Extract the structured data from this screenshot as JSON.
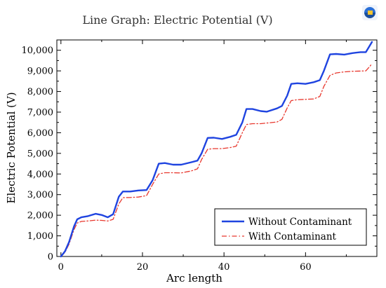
{
  "chart_data": {
    "type": "line",
    "title": "Line Graph: Electric Potential (V)",
    "xlabel": "Arc length",
    "ylabel": "Electric Potential (V)",
    "xlim": [
      -1,
      77.5
    ],
    "ylim": [
      0,
      10500
    ],
    "xticks": [
      0,
      20,
      40,
      60
    ],
    "yticks": [
      0,
      1000,
      2000,
      3000,
      4000,
      5000,
      6000,
      7000,
      8000,
      9000,
      10000
    ],
    "ytick_labels": [
      "0",
      "1,000",
      "2,000",
      "3,000",
      "4,000",
      "5,000",
      "6,000",
      "7,000",
      "8,000",
      "9,000",
      "10,000"
    ],
    "grid": false,
    "legend_position": "bottom-right",
    "series": [
      {
        "name": "Without Contaminant",
        "color": "#1f44e0",
        "style": "solid",
        "points": [
          [
            0,
            0
          ],
          [
            1,
            250
          ],
          [
            2,
            700
          ],
          [
            3.2,
            1450
          ],
          [
            4,
            1800
          ],
          [
            5,
            1900
          ],
          [
            6.5,
            1950
          ],
          [
            8.5,
            2070
          ],
          [
            10,
            2010
          ],
          [
            11.5,
            1900
          ],
          [
            12.8,
            2050
          ],
          [
            14.2,
            2900
          ],
          [
            15.2,
            3150
          ],
          [
            17,
            3150
          ],
          [
            19,
            3200
          ],
          [
            21,
            3220
          ],
          [
            22.5,
            3700
          ],
          [
            24,
            4500
          ],
          [
            25.5,
            4530
          ],
          [
            27.5,
            4450
          ],
          [
            29.5,
            4450
          ],
          [
            32,
            4570
          ],
          [
            33.5,
            4650
          ],
          [
            34.5,
            5000
          ],
          [
            36,
            5750
          ],
          [
            37.5,
            5760
          ],
          [
            39.5,
            5700
          ],
          [
            41.5,
            5800
          ],
          [
            43,
            5900
          ],
          [
            44.5,
            6500
          ],
          [
            45.5,
            7150
          ],
          [
            47,
            7150
          ],
          [
            49,
            7050
          ],
          [
            50.5,
            7020
          ],
          [
            53,
            7180
          ],
          [
            54.2,
            7300
          ],
          [
            55.5,
            7800
          ],
          [
            56.5,
            8370
          ],
          [
            58,
            8400
          ],
          [
            60,
            8370
          ],
          [
            62,
            8450
          ],
          [
            63.5,
            8550
          ],
          [
            64.5,
            9000
          ],
          [
            66,
            9800
          ],
          [
            67.5,
            9820
          ],
          [
            69.5,
            9790
          ],
          [
            71.5,
            9860
          ],
          [
            73.5,
            9910
          ],
          [
            74.8,
            9910
          ],
          [
            75.7,
            10200
          ],
          [
            76.3,
            10400
          ]
        ]
      },
      {
        "name": "With Contaminant",
        "color": "#e8372d",
        "style": "dashdot",
        "points": [
          [
            0,
            0
          ],
          [
            1,
            200
          ],
          [
            2,
            600
          ],
          [
            3.2,
            1300
          ],
          [
            4,
            1620
          ],
          [
            5,
            1700
          ],
          [
            6.5,
            1720
          ],
          [
            8.5,
            1760
          ],
          [
            10,
            1750
          ],
          [
            11.5,
            1720
          ],
          [
            12.8,
            1800
          ],
          [
            14.2,
            2550
          ],
          [
            15.2,
            2850
          ],
          [
            17,
            2860
          ],
          [
            19,
            2880
          ],
          [
            21,
            2950
          ],
          [
            22.5,
            3500
          ],
          [
            24,
            4000
          ],
          [
            25.5,
            4060
          ],
          [
            27.5,
            4060
          ],
          [
            29.5,
            4050
          ],
          [
            32,
            4150
          ],
          [
            33.5,
            4250
          ],
          [
            34.5,
            4700
          ],
          [
            36,
            5200
          ],
          [
            37.5,
            5230
          ],
          [
            39.5,
            5230
          ],
          [
            41.5,
            5280
          ],
          [
            43,
            5350
          ],
          [
            44.5,
            6000
          ],
          [
            45.5,
            6400
          ],
          [
            47,
            6440
          ],
          [
            49,
            6440
          ],
          [
            50.5,
            6470
          ],
          [
            53,
            6520
          ],
          [
            54.2,
            6650
          ],
          [
            55.5,
            7200
          ],
          [
            56.5,
            7560
          ],
          [
            58,
            7600
          ],
          [
            60,
            7620
          ],
          [
            62,
            7640
          ],
          [
            63.5,
            7760
          ],
          [
            64.5,
            8250
          ],
          [
            66,
            8780
          ],
          [
            67.5,
            8900
          ],
          [
            69.5,
            8950
          ],
          [
            71.5,
            8980
          ],
          [
            73.5,
            8990
          ],
          [
            74.8,
            9000
          ],
          [
            75.7,
            9200
          ],
          [
            76.3,
            9350
          ]
        ]
      }
    ]
  },
  "corner_logo": {
    "icon": "comsol-logo-icon",
    "colors": [
      "#2a6fd6",
      "#f4c430",
      "#1b4f9c"
    ]
  }
}
